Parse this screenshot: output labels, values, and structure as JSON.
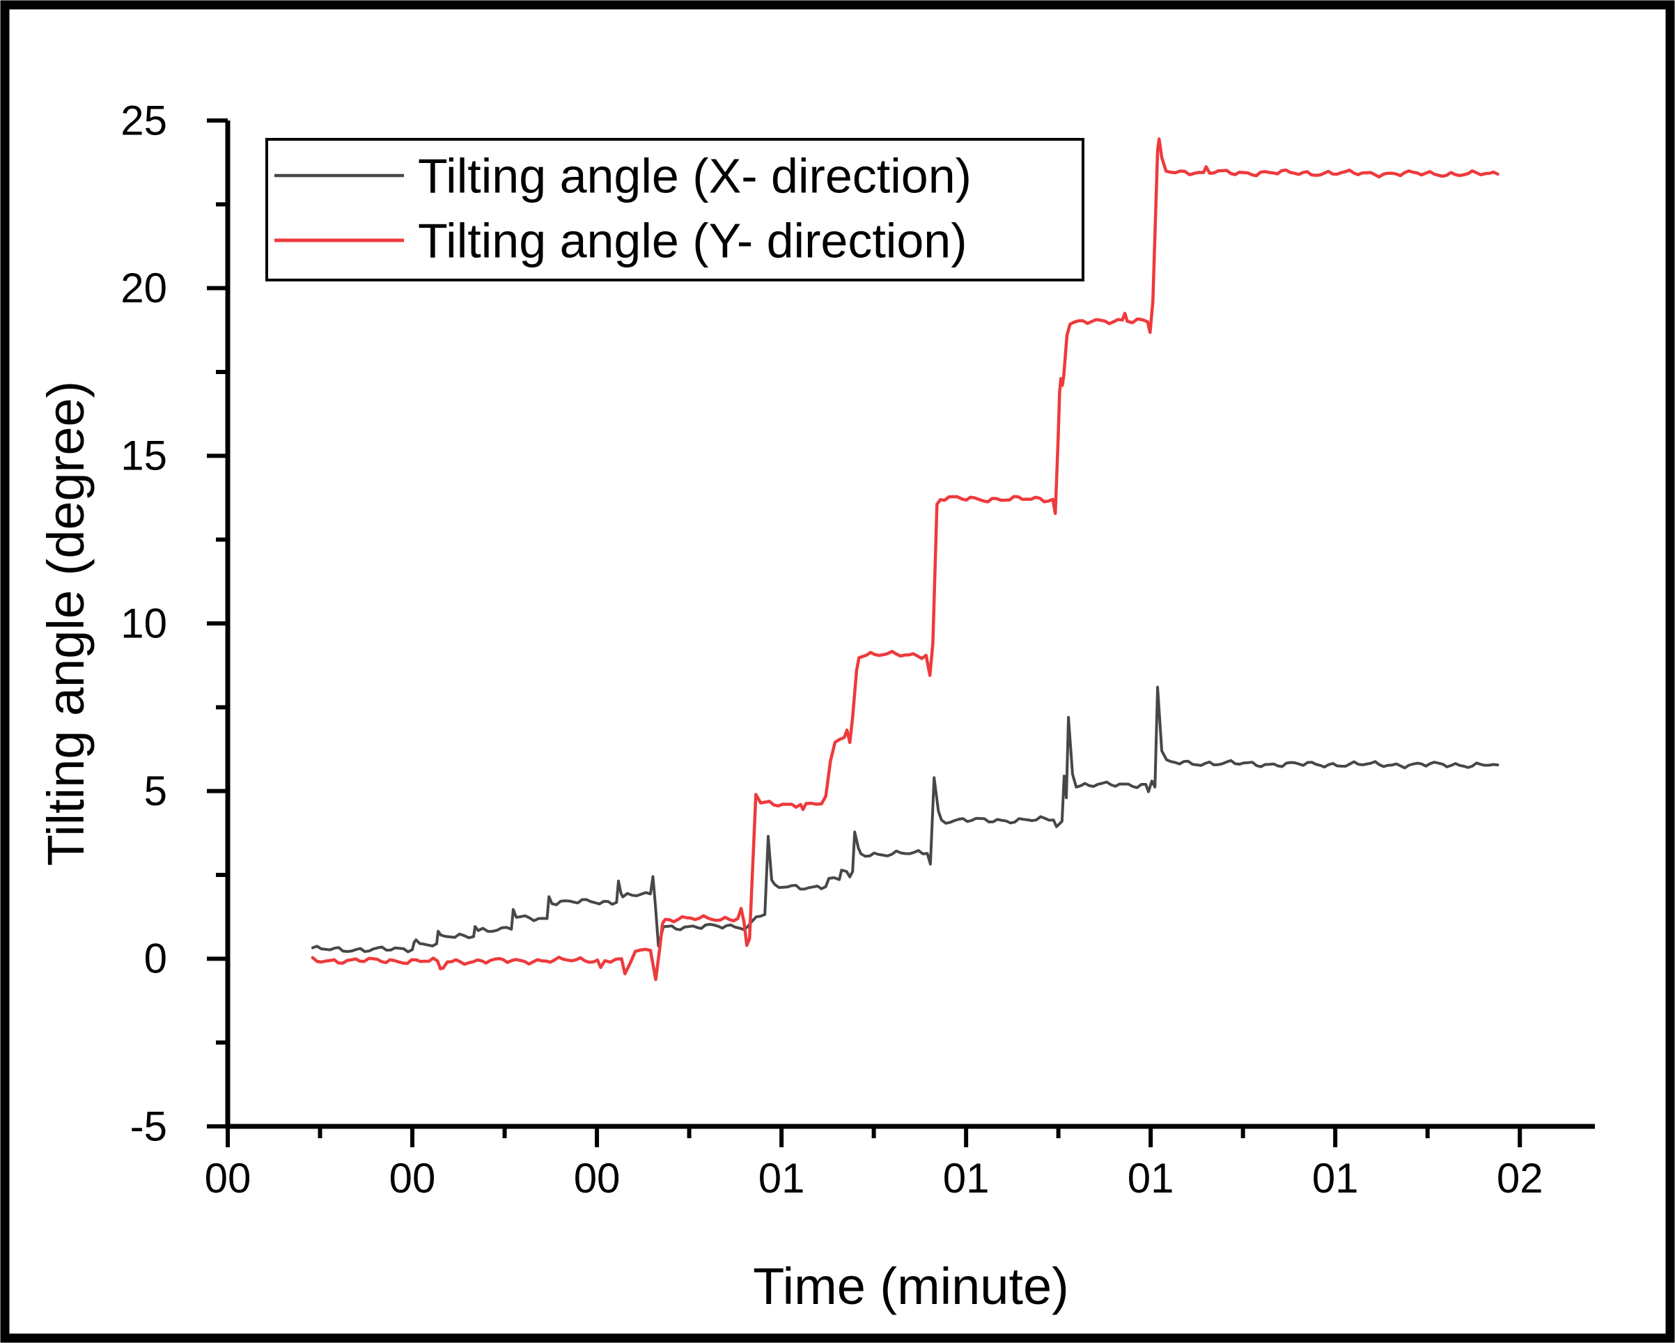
{
  "chart_data": {
    "type": "line",
    "title": "",
    "xlabel": "Time (minute)",
    "ylabel": "Tilting angle (degree)",
    "legend_position": "top-left-inside",
    "grid": "off",
    "axis_color": "#000000",
    "background_color": "#ffffff",
    "ylim": [
      -5,
      25
    ],
    "y_major_ticks": [
      25,
      20,
      15,
      10,
      5,
      0,
      -5
    ],
    "y_minor_ticks": [
      22.5,
      17.5,
      12.5,
      7.5,
      2.5,
      -2.5
    ],
    "x_axis_time_format_note": "time axis labeled in minutes, major ticks every 15 s from 00:15 to 02:00",
    "xlim_seconds": [
      15,
      126.1
    ],
    "x_major_ticks": [
      {
        "t": 15,
        "label": "00"
      },
      {
        "t": 30,
        "label": "00"
      },
      {
        "t": 45,
        "label": "00"
      },
      {
        "t": 60,
        "label": "01"
      },
      {
        "t": 75,
        "label": "01"
      },
      {
        "t": 90,
        "label": "01"
      },
      {
        "t": 105,
        "label": "01"
      },
      {
        "t": 120,
        "label": "02"
      }
    ],
    "x_minor_ticks": [
      22.5,
      37.5,
      52.5,
      67.5,
      82.5,
      97.5,
      112.5
    ],
    "series": [
      {
        "name": "Tilting angle (X- direction)",
        "color": "#474747",
        "line_width": 4,
        "points": [
          [
            21.9,
            0.28
          ],
          [
            30.0,
            0.27
          ],
          [
            30.15,
            0.5
          ],
          [
            30.3,
            0.56
          ],
          [
            30.6,
            0.45
          ],
          [
            31.98,
            0.45
          ],
          [
            32.1,
            0.82
          ],
          [
            32.3,
            0.64
          ],
          [
            34.98,
            0.66
          ],
          [
            35.1,
            0.98
          ],
          [
            35.35,
            0.87
          ],
          [
            38.05,
            0.88
          ],
          [
            38.2,
            1.47
          ],
          [
            38.45,
            1.21
          ],
          [
            40.95,
            1.2
          ],
          [
            41.1,
            1.85
          ],
          [
            41.35,
            1.7
          ],
          [
            46.6,
            1.68
          ],
          [
            46.75,
            2.32
          ],
          [
            46.95,
            1.96
          ],
          [
            47.1,
            1.88
          ],
          [
            49.35,
            1.93
          ],
          [
            49.55,
            2.45
          ],
          [
            49.75,
            1.6
          ],
          [
            50.0,
            0.38
          ],
          [
            50.4,
            0.95
          ],
          [
            57.25,
            0.96
          ],
          [
            57.55,
            1.08
          ],
          [
            57.95,
            1.28
          ],
          [
            58.65,
            1.32
          ],
          [
            58.92,
            3.65
          ],
          [
            59.2,
            2.35
          ],
          [
            59.45,
            2.13
          ],
          [
            63.6,
            2.15
          ],
          [
            63.85,
            2.38
          ],
          [
            64.7,
            2.36
          ],
          [
            64.88,
            2.62
          ],
          [
            65.3,
            2.6
          ],
          [
            65.55,
            2.44
          ],
          [
            65.78,
            2.6
          ],
          [
            65.95,
            3.78
          ],
          [
            66.25,
            3.3
          ],
          [
            66.45,
            3.12
          ],
          [
            71.85,
            3.14
          ],
          [
            72.1,
            2.82
          ],
          [
            72.4,
            5.4
          ],
          [
            72.75,
            4.4
          ],
          [
            73.0,
            4.12
          ],
          [
            82.1,
            4.14
          ],
          [
            82.35,
            3.95
          ],
          [
            82.8,
            4.1
          ],
          [
            82.97,
            5.45
          ],
          [
            83.15,
            4.8
          ],
          [
            83.32,
            7.2
          ],
          [
            83.65,
            5.5
          ],
          [
            83.95,
            5.17
          ],
          [
            89.6,
            5.2
          ],
          [
            89.82,
            4.98
          ],
          [
            90.1,
            5.3
          ],
          [
            90.35,
            5.12
          ],
          [
            90.56,
            8.1
          ],
          [
            90.9,
            6.2
          ],
          [
            91.3,
            5.85
          ],
          [
            100.0,
            5.8
          ],
          [
            118.2,
            5.78
          ]
        ]
      },
      {
        "name": "Tilting angle (Y- direction)",
        "color": "#ee3a3c",
        "line_width": 4.5,
        "points": [
          [
            21.9,
            -0.05
          ],
          [
            32.05,
            -0.07
          ],
          [
            32.28,
            -0.3
          ],
          [
            32.5,
            -0.28
          ],
          [
            32.85,
            -0.08
          ],
          [
            45.05,
            -0.04
          ],
          [
            45.3,
            -0.26
          ],
          [
            45.65,
            -0.06
          ],
          [
            47.0,
            0.0
          ],
          [
            47.28,
            -0.45
          ],
          [
            47.72,
            -0.12
          ],
          [
            48.12,
            0.2
          ],
          [
            49.35,
            0.25
          ],
          [
            49.78,
            -0.62
          ],
          [
            50.1,
            0.3
          ],
          [
            50.33,
            1.05
          ],
          [
            50.55,
            1.18
          ],
          [
            56.45,
            1.2
          ],
          [
            56.72,
            1.5
          ],
          [
            56.95,
            1.1
          ],
          [
            57.18,
            0.4
          ],
          [
            57.4,
            0.6
          ],
          [
            57.92,
            4.9
          ],
          [
            58.3,
            4.62
          ],
          [
            61.55,
            4.6
          ],
          [
            61.75,
            4.45
          ],
          [
            62.0,
            4.6
          ],
          [
            63.25,
            4.62
          ],
          [
            63.6,
            4.85
          ],
          [
            63.98,
            5.9
          ],
          [
            64.35,
            6.45
          ],
          [
            64.7,
            6.55
          ],
          [
            65.1,
            6.6
          ],
          [
            65.32,
            6.82
          ],
          [
            65.55,
            6.45
          ],
          [
            65.78,
            7.2
          ],
          [
            66.1,
            8.6
          ],
          [
            66.3,
            9.0
          ],
          [
            66.55,
            9.08
          ],
          [
            71.75,
            9.05
          ],
          [
            72.06,
            8.45
          ],
          [
            72.3,
            9.4
          ],
          [
            72.63,
            13.55
          ],
          [
            72.9,
            13.72
          ],
          [
            82.05,
            13.7
          ],
          [
            82.25,
            13.28
          ],
          [
            82.48,
            15.5
          ],
          [
            82.6,
            16.9
          ],
          [
            82.7,
            17.3
          ],
          [
            82.82,
            17.1
          ],
          [
            82.94,
            17.4
          ],
          [
            83.2,
            18.6
          ],
          [
            83.45,
            18.95
          ],
          [
            87.7,
            19.05
          ],
          [
            87.9,
            19.25
          ],
          [
            88.1,
            19.05
          ],
          [
            89.75,
            19.0
          ],
          [
            89.95,
            18.68
          ],
          [
            90.18,
            19.6
          ],
          [
            90.56,
            24.1
          ],
          [
            90.68,
            24.45
          ],
          [
            90.9,
            23.9
          ],
          [
            91.25,
            23.5
          ],
          [
            94.3,
            23.45
          ],
          [
            94.5,
            23.62
          ],
          [
            94.8,
            23.45
          ],
          [
            118.2,
            23.4
          ]
        ]
      }
    ]
  }
}
